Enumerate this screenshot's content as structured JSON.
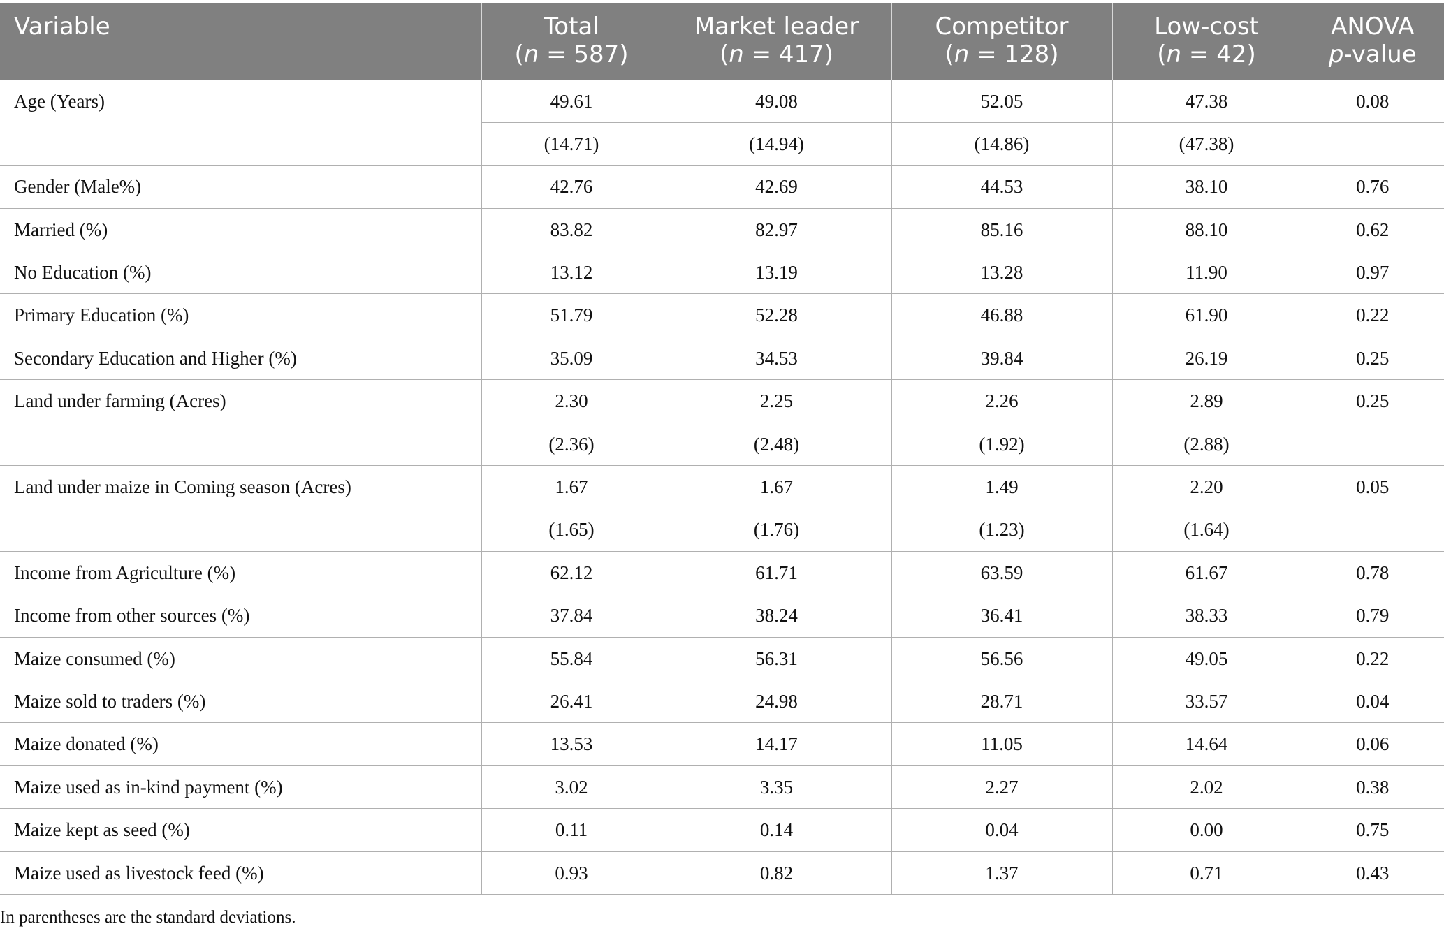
{
  "header": {
    "variable": "Variable",
    "total": "Total",
    "total_n": "587",
    "market_leader": "Market leader",
    "market_leader_n": "417",
    "competitor": "Competitor",
    "competitor_n": "128",
    "low_cost": "Low-cost",
    "low_cost_n": "42",
    "anova": "ANOVA",
    "pvalue_suffix": "-value"
  },
  "rows": [
    {
      "label": "Age (Years)",
      "total": "49.61",
      "market_leader": "49.08",
      "competitor": "52.05",
      "low_cost": "47.38",
      "p": "0.08",
      "sd": {
        "total": "(14.71)",
        "market_leader": "(14.94)",
        "competitor": "(14.86)",
        "low_cost": "(47.38)"
      }
    },
    {
      "label": "Gender (Male%)",
      "total": "42.76",
      "market_leader": "42.69",
      "competitor": "44.53",
      "low_cost": "38.10",
      "p": "0.76"
    },
    {
      "label": "Married (%)",
      "total": "83.82",
      "market_leader": "82.97",
      "competitor": "85.16",
      "low_cost": "88.10",
      "p": "0.62"
    },
    {
      "label": "No Education (%)",
      "total": "13.12",
      "market_leader": "13.19",
      "competitor": "13.28",
      "low_cost": "11.90",
      "p": "0.97"
    },
    {
      "label": "Primary Education (%)",
      "total": "51.79",
      "market_leader": "52.28",
      "competitor": "46.88",
      "low_cost": "61.90",
      "p": "0.22"
    },
    {
      "label": "Secondary Education and Higher (%)",
      "total": "35.09",
      "market_leader": "34.53",
      "competitor": "39.84",
      "low_cost": "26.19",
      "p": "0.25"
    },
    {
      "label": "Land under farming (Acres)",
      "total": "2.30",
      "market_leader": "2.25",
      "competitor": "2.26",
      "low_cost": "2.89",
      "p": "0.25",
      "sd": {
        "total": "(2.36)",
        "market_leader": "(2.48)",
        "competitor": "(1.92)",
        "low_cost": "(2.88)"
      }
    },
    {
      "label": "Land under maize in Coming season (Acres)",
      "total": "1.67",
      "market_leader": "1.67",
      "competitor": "1.49",
      "low_cost": "2.20",
      "p": "0.05",
      "sd": {
        "total": "(1.65)",
        "market_leader": "(1.76)",
        "competitor": "(1.23)",
        "low_cost": "(1.64)"
      }
    },
    {
      "label": "Income from Agriculture (%)",
      "total": "62.12",
      "market_leader": "61.71",
      "competitor": "63.59",
      "low_cost": "61.67",
      "p": "0.78"
    },
    {
      "label": "Income from other sources (%)",
      "total": "37.84",
      "market_leader": "38.24",
      "competitor": "36.41",
      "low_cost": "38.33",
      "p": "0.79"
    },
    {
      "label": "Maize consumed (%)",
      "total": "55.84",
      "market_leader": "56.31",
      "competitor": "56.56",
      "low_cost": "49.05",
      "p": "0.22"
    },
    {
      "label": "Maize sold to traders (%)",
      "total": "26.41",
      "market_leader": "24.98",
      "competitor": "28.71",
      "low_cost": "33.57",
      "p": "0.04"
    },
    {
      "label": "Maize donated (%)",
      "total": "13.53",
      "market_leader": "14.17",
      "competitor": "11.05",
      "low_cost": "14.64",
      "p": "0.06"
    },
    {
      "label": "Maize used as in-kind payment (%)",
      "total": "3.02",
      "market_leader": "3.35",
      "competitor": "2.27",
      "low_cost": "2.02",
      "p": "0.38"
    },
    {
      "label": "Maize kept as seed (%)",
      "total": "0.11",
      "market_leader": "0.14",
      "competitor": "0.04",
      "low_cost": "0.00",
      "p": "0.75"
    },
    {
      "label": "Maize used as livestock feed (%)",
      "total": "0.93",
      "market_leader": "0.82",
      "competitor": "1.37",
      "low_cost": "0.71",
      "p": "0.43"
    }
  ],
  "footnote": "In parentheses are the standard deviations."
}
